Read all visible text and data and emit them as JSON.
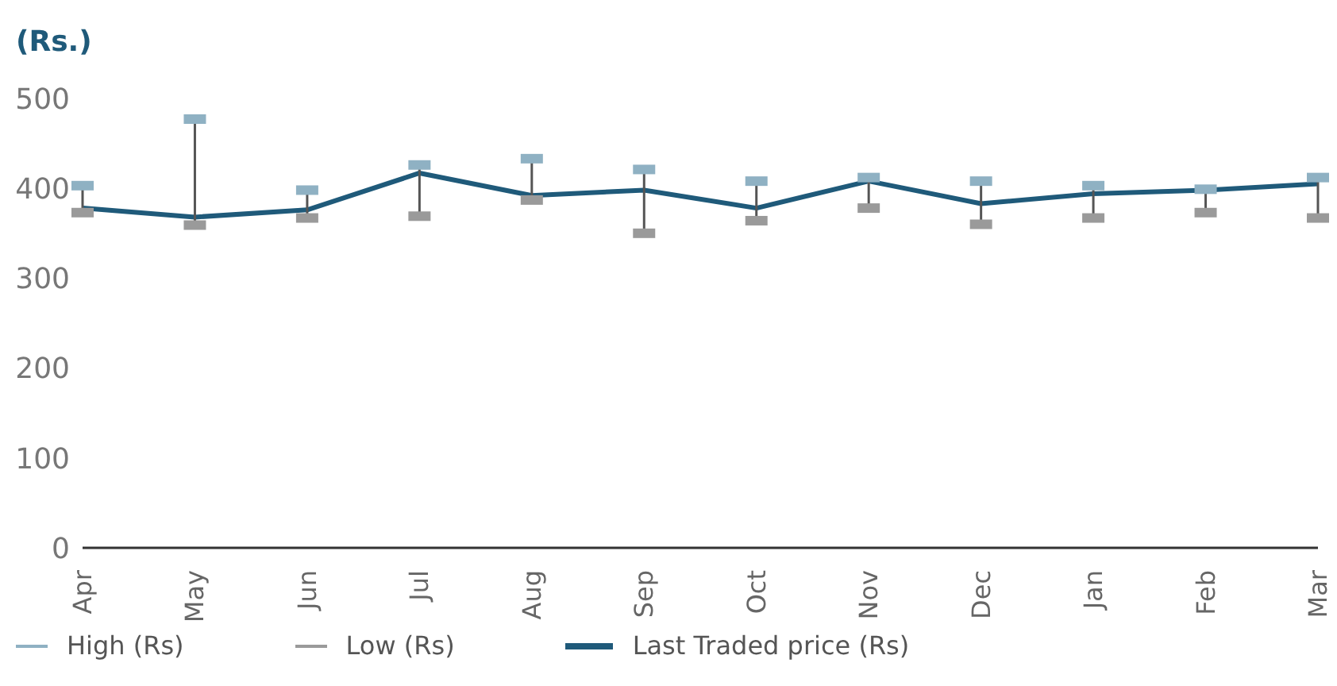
{
  "chart_data": {
    "type": "line",
    "ylabel": "(Rs.)",
    "categories": [
      "Apr",
      "May",
      "Jun",
      "Jul",
      "Aug",
      "Sep",
      "Oct",
      "Nov",
      "Dec",
      "Jan",
      "Feb",
      "Mar"
    ],
    "series": [
      {
        "name": "High (Rs)",
        "type": "scatter",
        "color": "#8fb1c3",
        "values": [
          403,
          477,
          398,
          426,
          433,
          421,
          408,
          412,
          408,
          403,
          399,
          412
        ]
      },
      {
        "name": "Low (Rs)",
        "type": "scatter",
        "color": "#9a9a9a",
        "values": [
          373,
          359,
          367,
          369,
          387,
          350,
          364,
          378,
          360,
          367,
          373,
          367
        ]
      },
      {
        "name": "Last Traded price (Rs)",
        "marker": "none",
        "color": "#1f5a7a",
        "values": [
          378,
          368,
          376,
          417,
          392,
          398,
          378,
          408,
          383,
          394,
          398,
          405
        ]
      }
    ],
    "ylim": [
      0,
      500
    ],
    "yticks": [
      0,
      100,
      200,
      300,
      400,
      500
    ],
    "grid": false,
    "legend": "bottom left"
  }
}
